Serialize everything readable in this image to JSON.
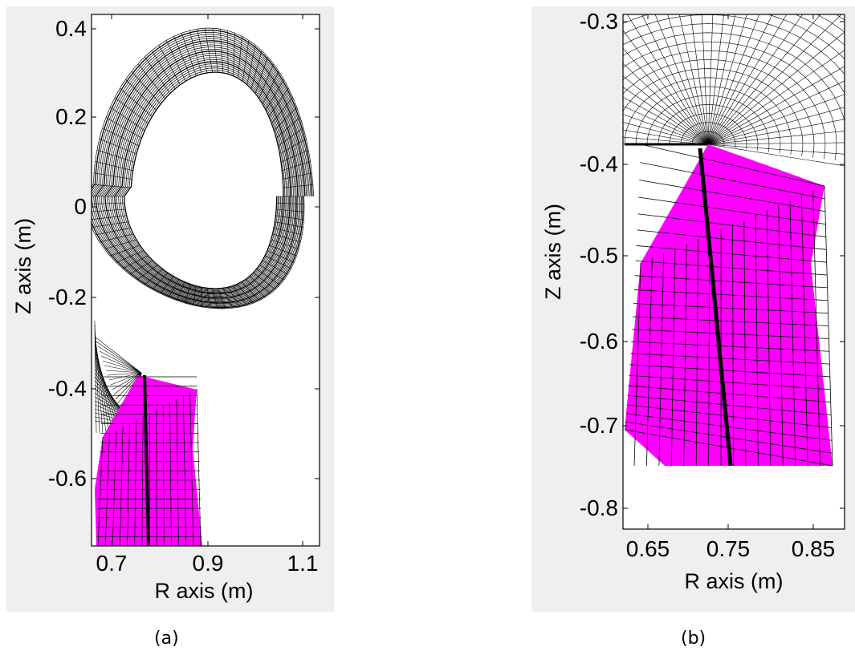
{
  "panels": [
    {
      "caption": "(a)",
      "xlabel": "R axis (m)",
      "ylabel": "Z axis (m)",
      "xticks": [
        "0.7",
        "0.9",
        "1.1"
      ],
      "yticks": [
        "0.4",
        "0.2",
        "0",
        "-0.2",
        "-0.4",
        "-0.6"
      ]
    },
    {
      "caption": "(b)",
      "xlabel": "R axis (m)",
      "ylabel": "Z axis (m)",
      "xticks": [
        "0.65",
        "0.75",
        "0.85"
      ],
      "yticks": [
        "-0.3",
        "-0.4",
        "-0.5",
        "-0.6",
        "-0.7",
        "-0.8"
      ]
    }
  ],
  "colors": {
    "mesh_core": "#000000",
    "mesh_divertor": "#ff00ff",
    "panel_background": "#efefef"
  }
}
